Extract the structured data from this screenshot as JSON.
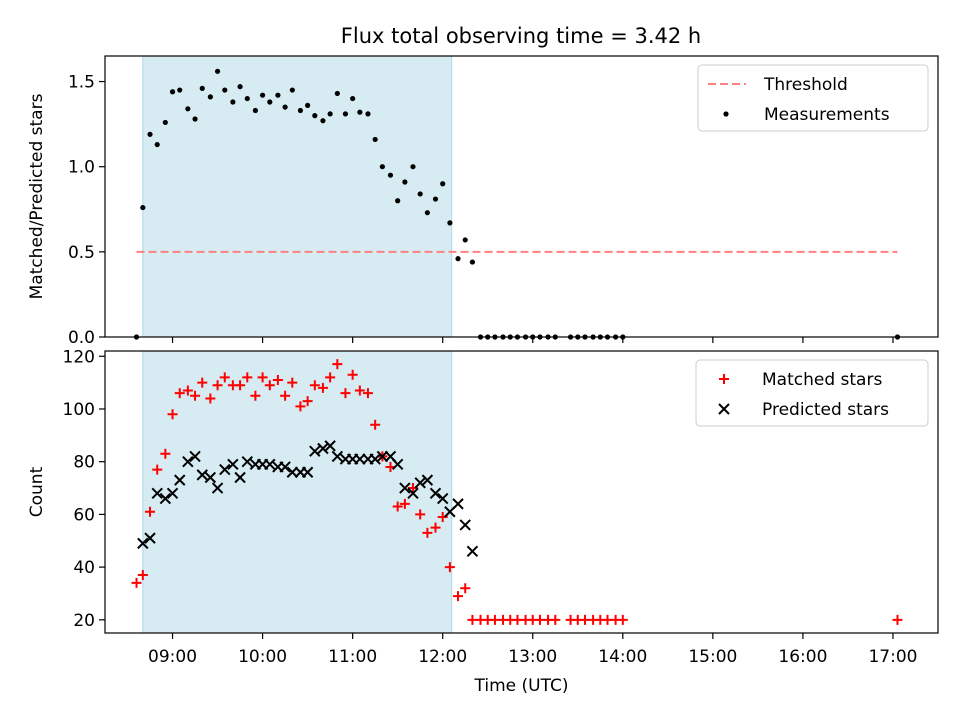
{
  "title": "Flux total observing time = 3.42 h",
  "colors": {
    "shade": "#add8e6",
    "threshold": "#ff8080",
    "matched": "#ff0000",
    "predicted": "#000000",
    "measurement": "#000000"
  },
  "chart_data": [
    {
      "type": "scatter",
      "name": "ratio-panel",
      "ylabel": "Matched/Predicted stars",
      "xlim": [
        8.25,
        17.5
      ],
      "ylim": [
        0,
        1.65
      ],
      "yticks": [
        0,
        0.5,
        1.0,
        1.5
      ],
      "ytick_labels": [
        "0.0",
        "0.5",
        "1.0",
        "1.5"
      ],
      "shaded_span": [
        8.67,
        12.1
      ],
      "threshold": {
        "y": 0.5,
        "x_range": [
          8.6,
          17.05
        ],
        "label": "Threshold"
      },
      "legend": [
        "Threshold",
        "Measurements"
      ],
      "legend_placement": "top-right",
      "series": [
        {
          "name": "Measurements",
          "points": [
            [
              8.6,
              0.0
            ],
            [
              8.67,
              0.76
            ],
            [
              8.75,
              1.19
            ],
            [
              8.83,
              1.13
            ],
            [
              8.92,
              1.26
            ],
            [
              9.0,
              1.44
            ],
            [
              9.08,
              1.45
            ],
            [
              9.17,
              1.34
            ],
            [
              9.25,
              1.28
            ],
            [
              9.33,
              1.46
            ],
            [
              9.42,
              1.41
            ],
            [
              9.5,
              1.56
            ],
            [
              9.58,
              1.45
            ],
            [
              9.67,
              1.38
            ],
            [
              9.75,
              1.47
            ],
            [
              9.83,
              1.4
            ],
            [
              9.92,
              1.33
            ],
            [
              10.0,
              1.42
            ],
            [
              10.08,
              1.38
            ],
            [
              10.17,
              1.42
            ],
            [
              10.25,
              1.35
            ],
            [
              10.33,
              1.45
            ],
            [
              10.42,
              1.33
            ],
            [
              10.5,
              1.36
            ],
            [
              10.58,
              1.3
            ],
            [
              10.67,
              1.27
            ],
            [
              10.75,
              1.31
            ],
            [
              10.83,
              1.43
            ],
            [
              10.92,
              1.31
            ],
            [
              11.0,
              1.4
            ],
            [
              11.08,
              1.32
            ],
            [
              11.17,
              1.31
            ],
            [
              11.25,
              1.16
            ],
            [
              11.33,
              1.0
            ],
            [
              11.42,
              0.95
            ],
            [
              11.5,
              0.8
            ],
            [
              11.58,
              0.91
            ],
            [
              11.67,
              1.0
            ],
            [
              11.75,
              0.84
            ],
            [
              11.83,
              0.73
            ],
            [
              11.92,
              0.81
            ],
            [
              12.0,
              0.9
            ],
            [
              12.08,
              0.67
            ],
            [
              12.17,
              0.46
            ],
            [
              12.25,
              0.57
            ],
            [
              12.33,
              0.44
            ],
            [
              12.42,
              0.0
            ],
            [
              12.5,
              0.0
            ],
            [
              12.58,
              0.0
            ],
            [
              12.67,
              0.0
            ],
            [
              12.75,
              0.0
            ],
            [
              12.83,
              0.0
            ],
            [
              12.92,
              0.0
            ],
            [
              13.0,
              0.0
            ],
            [
              13.08,
              0.0
            ],
            [
              13.17,
              0.0
            ],
            [
              13.25,
              0.0
            ],
            [
              13.42,
              0.0
            ],
            [
              13.5,
              0.0
            ],
            [
              13.58,
              0.0
            ],
            [
              13.67,
              0.0
            ],
            [
              13.75,
              0.0
            ],
            [
              13.83,
              0.0
            ],
            [
              13.92,
              0.0
            ],
            [
              14.0,
              0.0
            ],
            [
              17.05,
              0.0
            ]
          ]
        }
      ]
    },
    {
      "type": "scatter",
      "name": "count-panel",
      "ylabel": "Count",
      "xlabel": "Time (UTC)",
      "xlim": [
        8.25,
        17.5
      ],
      "ylim": [
        15,
        122
      ],
      "yticks": [
        20,
        40,
        60,
        80,
        100,
        120
      ],
      "ytick_labels": [
        "20",
        "40",
        "60",
        "80",
        "100",
        "120"
      ],
      "xticks": [
        9,
        10,
        11,
        12,
        13,
        14,
        15,
        16,
        17
      ],
      "xtick_labels": [
        "09:00",
        "10:00",
        "11:00",
        "12:00",
        "13:00",
        "14:00",
        "15:00",
        "16:00",
        "17:00"
      ],
      "shaded_span": [
        8.67,
        12.1
      ],
      "legend": [
        "Matched stars",
        "Predicted stars"
      ],
      "legend_placement": "top-right",
      "series": [
        {
          "name": "Matched stars",
          "marker": "+",
          "points": [
            [
              8.6,
              34
            ],
            [
              8.67,
              37
            ],
            [
              8.75,
              61
            ],
            [
              8.83,
              77
            ],
            [
              8.92,
              83
            ],
            [
              9.0,
              98
            ],
            [
              9.08,
              106
            ],
            [
              9.17,
              107
            ],
            [
              9.25,
              105
            ],
            [
              9.33,
              110
            ],
            [
              9.42,
              104
            ],
            [
              9.5,
              109
            ],
            [
              9.58,
              112
            ],
            [
              9.67,
              109
            ],
            [
              9.75,
              109
            ],
            [
              9.83,
              112
            ],
            [
              9.92,
              105
            ],
            [
              10.0,
              112
            ],
            [
              10.08,
              109
            ],
            [
              10.17,
              111
            ],
            [
              10.25,
              105
            ],
            [
              10.33,
              110
            ],
            [
              10.42,
              101
            ],
            [
              10.5,
              103
            ],
            [
              10.58,
              109
            ],
            [
              10.67,
              108
            ],
            [
              10.75,
              112
            ],
            [
              10.83,
              117
            ],
            [
              10.92,
              106
            ],
            [
              11.0,
              113
            ],
            [
              11.08,
              107
            ],
            [
              11.17,
              106
            ],
            [
              11.25,
              94
            ],
            [
              11.33,
              82
            ],
            [
              11.42,
              78
            ],
            [
              11.5,
              63
            ],
            [
              11.58,
              64
            ],
            [
              11.67,
              70
            ],
            [
              11.75,
              60
            ],
            [
              11.83,
              53
            ],
            [
              11.92,
              55
            ],
            [
              12.0,
              59
            ],
            [
              12.08,
              40
            ],
            [
              12.17,
              29
            ],
            [
              12.25,
              32
            ],
            [
              12.33,
              20
            ],
            [
              12.42,
              20
            ],
            [
              12.5,
              20
            ],
            [
              12.58,
              20
            ],
            [
              12.67,
              20
            ],
            [
              12.75,
              20
            ],
            [
              12.83,
              20
            ],
            [
              12.92,
              20
            ],
            [
              13.0,
              20
            ],
            [
              13.08,
              20
            ],
            [
              13.17,
              20
            ],
            [
              13.25,
              20
            ],
            [
              13.42,
              20
            ],
            [
              13.5,
              20
            ],
            [
              13.58,
              20
            ],
            [
              13.67,
              20
            ],
            [
              13.75,
              20
            ],
            [
              13.83,
              20
            ],
            [
              13.92,
              20
            ],
            [
              14.0,
              20
            ],
            [
              17.05,
              20
            ]
          ]
        },
        {
          "name": "Predicted stars",
          "marker": "x",
          "points": [
            [
              8.67,
              49
            ],
            [
              8.75,
              51
            ],
            [
              8.83,
              68
            ],
            [
              8.92,
              66
            ],
            [
              9.0,
              68
            ],
            [
              9.08,
              73
            ],
            [
              9.17,
              80
            ],
            [
              9.25,
              82
            ],
            [
              9.33,
              75
            ],
            [
              9.42,
              74
            ],
            [
              9.5,
              70
            ],
            [
              9.58,
              77
            ],
            [
              9.67,
              79
            ],
            [
              9.75,
              74
            ],
            [
              9.83,
              80
            ],
            [
              9.92,
              79
            ],
            [
              10.0,
              79
            ],
            [
              10.08,
              79
            ],
            [
              10.17,
              78
            ],
            [
              10.25,
              78
            ],
            [
              10.33,
              76
            ],
            [
              10.42,
              76
            ],
            [
              10.5,
              76
            ],
            [
              10.58,
              84
            ],
            [
              10.67,
              85
            ],
            [
              10.75,
              86
            ],
            [
              10.83,
              82
            ],
            [
              10.92,
              81
            ],
            [
              11.0,
              81
            ],
            [
              11.08,
              81
            ],
            [
              11.17,
              81
            ],
            [
              11.25,
              81
            ],
            [
              11.33,
              82
            ],
            [
              11.42,
              82
            ],
            [
              11.5,
              79
            ],
            [
              11.58,
              70
            ],
            [
              11.67,
              68
            ],
            [
              11.75,
              72
            ],
            [
              11.83,
              73
            ],
            [
              11.92,
              68
            ],
            [
              12.0,
              66
            ],
            [
              12.08,
              61
            ],
            [
              12.17,
              64
            ],
            [
              12.25,
              56
            ],
            [
              12.33,
              46
            ]
          ]
        }
      ]
    }
  ]
}
